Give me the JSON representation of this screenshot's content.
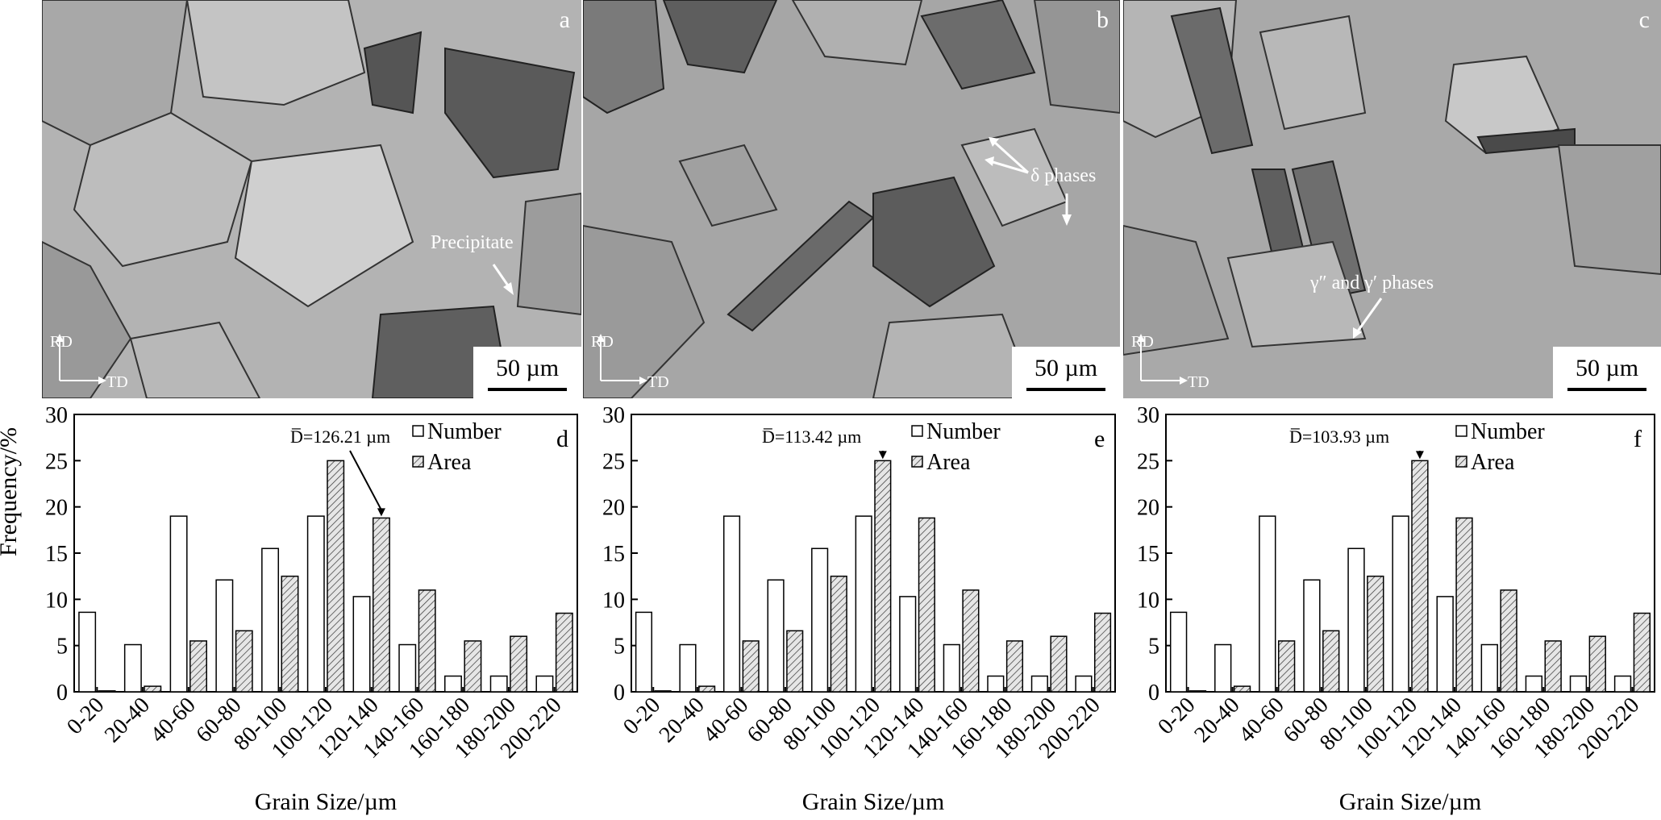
{
  "figure": {
    "micrographs": [
      {
        "letter": "a",
        "scale": "50 µm",
        "rd": "RD",
        "td": "TD",
        "annotation": "Precipitate"
      },
      {
        "letter": "b",
        "scale": "50 µm",
        "rd": "RD",
        "td": "TD",
        "annotation": "δ phases"
      },
      {
        "letter": "c",
        "scale": "50 µm",
        "rd": "RD",
        "td": "TD",
        "annotation": "γ″ and γ′ phases"
      }
    ],
    "ylabel": "Frequency/%",
    "colors": {
      "number_fill": "#ffffff",
      "area_fill": "hatched",
      "axis": "#000000"
    }
  },
  "chart_data": [
    {
      "type": "bar",
      "panel": "d",
      "categories": [
        "0-20",
        "20-40",
        "40-60",
        "60-80",
        "80-100",
        "100-120",
        "120-140",
        "140-160",
        "160-180",
        "180-200",
        "200-220"
      ],
      "series": [
        {
          "name": "Number",
          "values": [
            8.6,
            5.1,
            19.0,
            12.1,
            15.5,
            19.0,
            10.3,
            5.1,
            1.7,
            1.7,
            1.7
          ]
        },
        {
          "name": "Area",
          "values": [
            0.1,
            0.6,
            5.5,
            6.6,
            12.5,
            25.0,
            18.8,
            11.0,
            5.5,
            6.0,
            8.5
          ]
        }
      ],
      "annotation": "D̅=126.21 µm",
      "xlabel": "Grain Size/µm",
      "ylabel": "Frequency/%",
      "ylim": [
        0,
        30
      ],
      "yticks": [
        0,
        5,
        10,
        15,
        20,
        25,
        30
      ],
      "legend": "top-right"
    },
    {
      "type": "bar",
      "panel": "e",
      "categories": [
        "0-20",
        "20-40",
        "40-60",
        "60-80",
        "80-100",
        "100-120",
        "120-140",
        "140-160",
        "160-180",
        "180-200",
        "200-220"
      ],
      "series": [
        {
          "name": "Number",
          "values": [
            8.6,
            5.1,
            19.0,
            12.1,
            15.5,
            19.0,
            10.3,
            5.1,
            1.7,
            1.7,
            1.7
          ]
        },
        {
          "name": "Area",
          "values": [
            0.1,
            0.6,
            5.5,
            6.6,
            12.5,
            25.0,
            18.8,
            11.0,
            5.5,
            6.0,
            8.5
          ]
        }
      ],
      "annotation": "D̅=113.42  µm",
      "xlabel": "Grain Size/µm",
      "ylim": [
        0,
        30
      ],
      "yticks": [
        0,
        5,
        10,
        15,
        20,
        25,
        30
      ],
      "legend": "top-right"
    },
    {
      "type": "bar",
      "panel": "f",
      "categories": [
        "0-20",
        "20-40",
        "40-60",
        "60-80",
        "80-100",
        "100-120",
        "120-140",
        "140-160",
        "160-180",
        "180-200",
        "200-220"
      ],
      "series": [
        {
          "name": "Number",
          "values": [
            8.6,
            5.1,
            19.0,
            12.1,
            15.5,
            19.0,
            10.3,
            5.1,
            1.7,
            1.7,
            1.7
          ]
        },
        {
          "name": "Area",
          "values": [
            0.1,
            0.6,
            5.5,
            6.6,
            12.5,
            25.0,
            18.8,
            11.0,
            5.5,
            6.0,
            8.5
          ]
        }
      ],
      "annotation": "D̅=103.93 µm",
      "xlabel": "Grain Size/µm",
      "ylim": [
        0,
        30
      ],
      "yticks": [
        0,
        5,
        10,
        15,
        20,
        25,
        30
      ],
      "legend": "top-right"
    }
  ]
}
